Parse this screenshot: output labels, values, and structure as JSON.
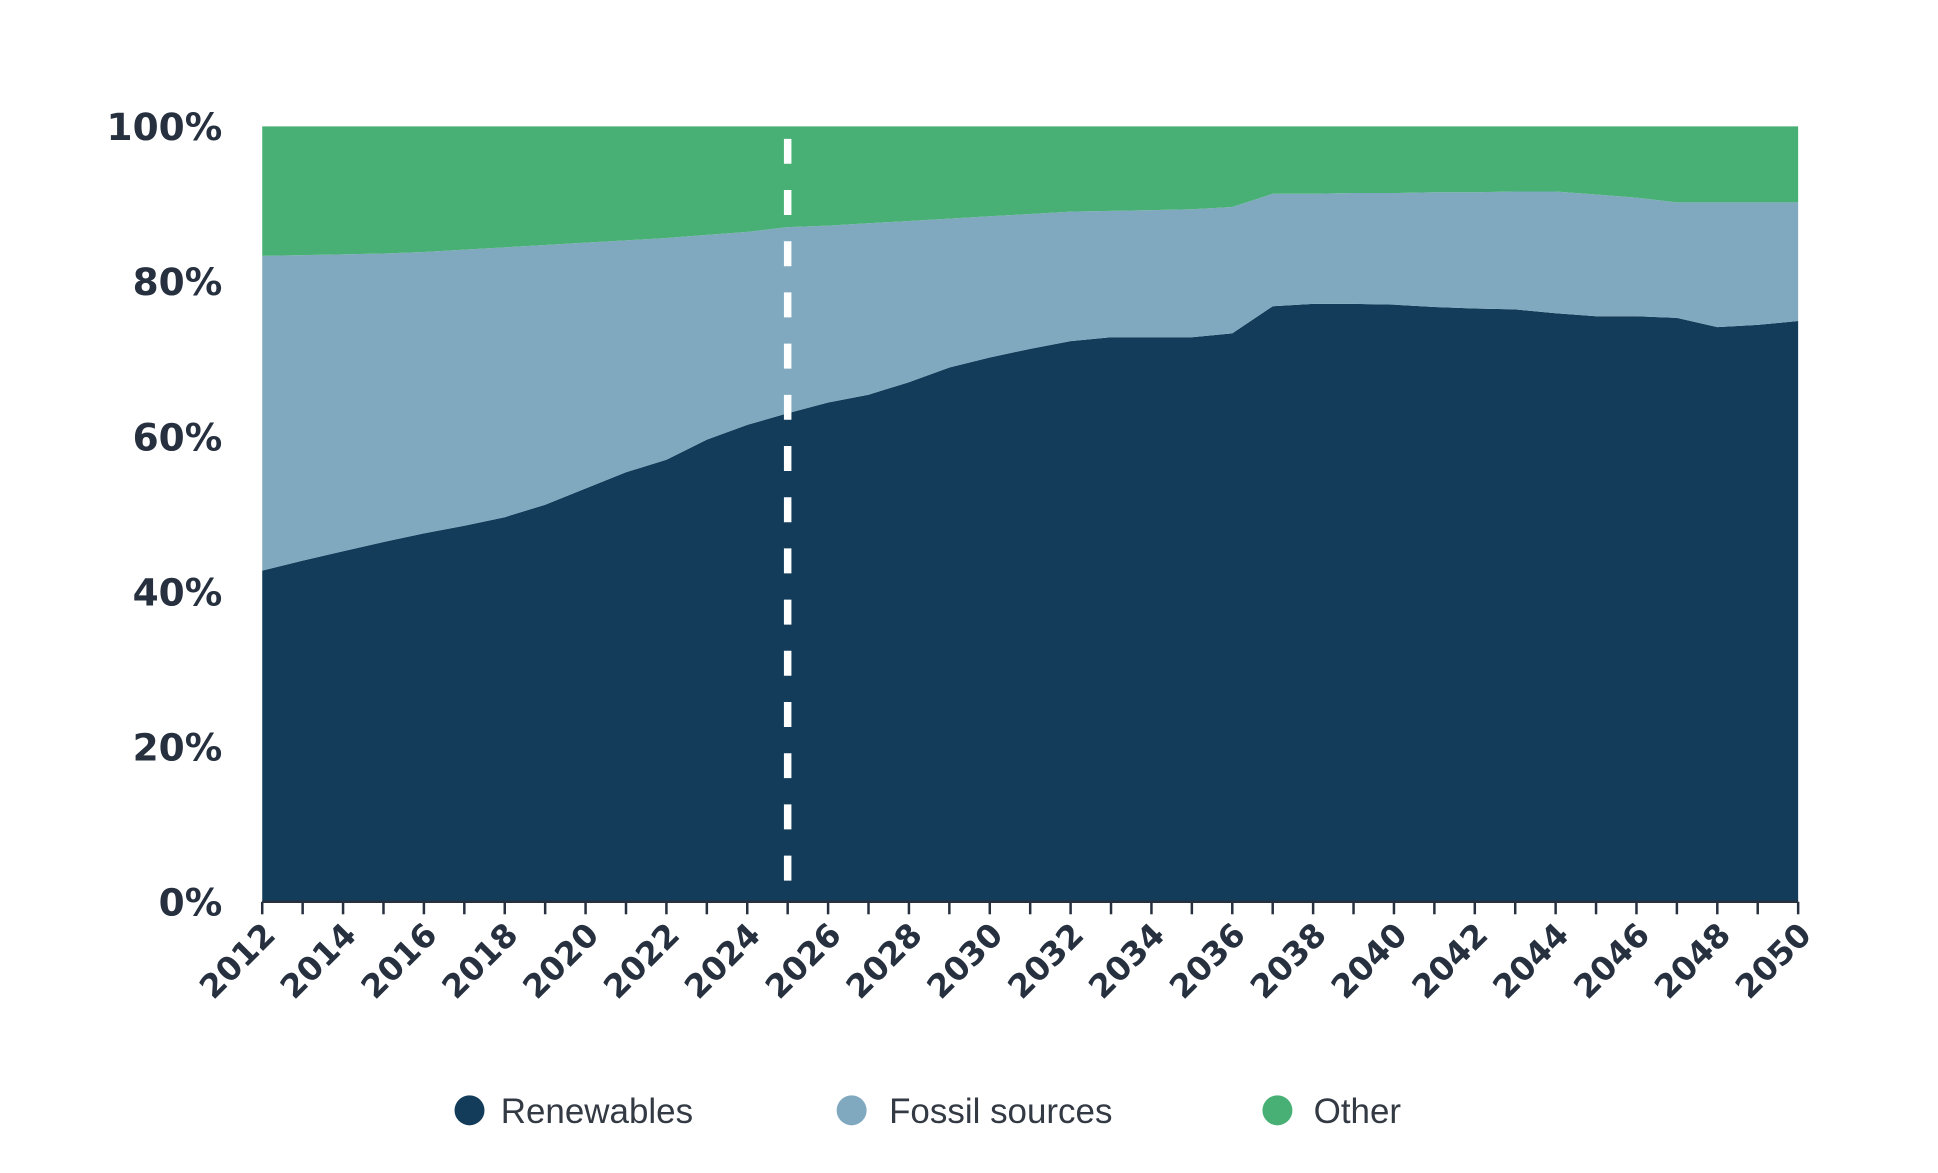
{
  "chart_data": {
    "type": "area",
    "stacked": true,
    "title": "",
    "xlabel": "",
    "ylabel": "",
    "x": [
      2012,
      2013,
      2014,
      2015,
      2016,
      2017,
      2018,
      2019,
      2020,
      2021,
      2022,
      2023,
      2024,
      2025,
      2026,
      2027,
      2028,
      2029,
      2030,
      2031,
      2032,
      2033,
      2034,
      2035,
      2036,
      2037,
      2038,
      2039,
      2040,
      2041,
      2042,
      2043,
      2044,
      2045,
      2046,
      2047,
      2048,
      2049,
      2050
    ],
    "xlim": [
      2012,
      2050
    ],
    "ylim": [
      0,
      100
    ],
    "x_tick_labels": [
      "2012",
      "2014",
      "2016",
      "2018",
      "2020",
      "2022",
      "2024",
      "2026",
      "2028",
      "2030",
      "2032",
      "2034",
      "2036",
      "2038",
      "2040",
      "2042",
      "2044",
      "2046",
      "2048",
      "2050"
    ],
    "y_tick_labels": [
      "0%",
      "20%",
      "40%",
      "60%",
      "80%",
      "100%"
    ],
    "y_ticks": [
      0,
      20,
      40,
      60,
      80,
      100
    ],
    "grid": false,
    "legend_position": "bottom",
    "annotation_vline_x": 2025,
    "series": [
      {
        "name": "Renewables",
        "color": "#123c5a",
        "values": [
          42.7,
          44.0,
          45.2,
          46.4,
          47.5,
          48.5,
          49.6,
          51.2,
          53.3,
          55.4,
          57.0,
          59.6,
          61.5,
          63.0,
          64.4,
          65.4,
          67.0,
          68.9,
          70.2,
          71.3,
          72.3,
          72.8,
          72.8,
          72.8,
          73.3,
          76.8,
          77.1,
          77.1,
          77.0,
          76.7,
          76.5,
          76.4,
          75.9,
          75.5,
          75.5,
          75.3,
          74.1,
          74.4,
          74.9
        ]
      },
      {
        "name": "Fossil sources",
        "color": "#80a9c0",
        "values": [
          40.6,
          39.4,
          38.3,
          37.2,
          36.3,
          35.6,
          34.8,
          33.5,
          31.7,
          29.9,
          28.6,
          26.4,
          24.9,
          24.0,
          22.8,
          22.1,
          20.8,
          19.2,
          18.2,
          17.4,
          16.7,
          16.3,
          16.4,
          16.5,
          16.3,
          14.5,
          14.2,
          14.3,
          14.4,
          14.8,
          15.0,
          15.2,
          15.7,
          15.7,
          15.3,
          14.9,
          16.1,
          15.8,
          15.3
        ]
      },
      {
        "name": "Other",
        "color": "#48b074",
        "values": [
          16.7,
          16.6,
          16.5,
          16.4,
          16.2,
          15.9,
          15.6,
          15.3,
          15.0,
          14.7,
          14.4,
          14.0,
          13.6,
          13.0,
          12.8,
          12.5,
          12.2,
          11.9,
          11.6,
          11.3,
          11.0,
          10.9,
          10.8,
          10.7,
          10.4,
          8.7,
          8.7,
          8.6,
          8.6,
          8.5,
          8.5,
          8.4,
          8.4,
          8.8,
          9.2,
          9.8,
          9.8,
          9.8,
          9.8
        ]
      }
    ]
  },
  "legend": {
    "items": [
      {
        "label": "Renewables",
        "color": "#123c5a"
      },
      {
        "label": "Fossil sources",
        "color": "#80a9c0"
      },
      {
        "label": "Other",
        "color": "#48b074"
      }
    ]
  }
}
